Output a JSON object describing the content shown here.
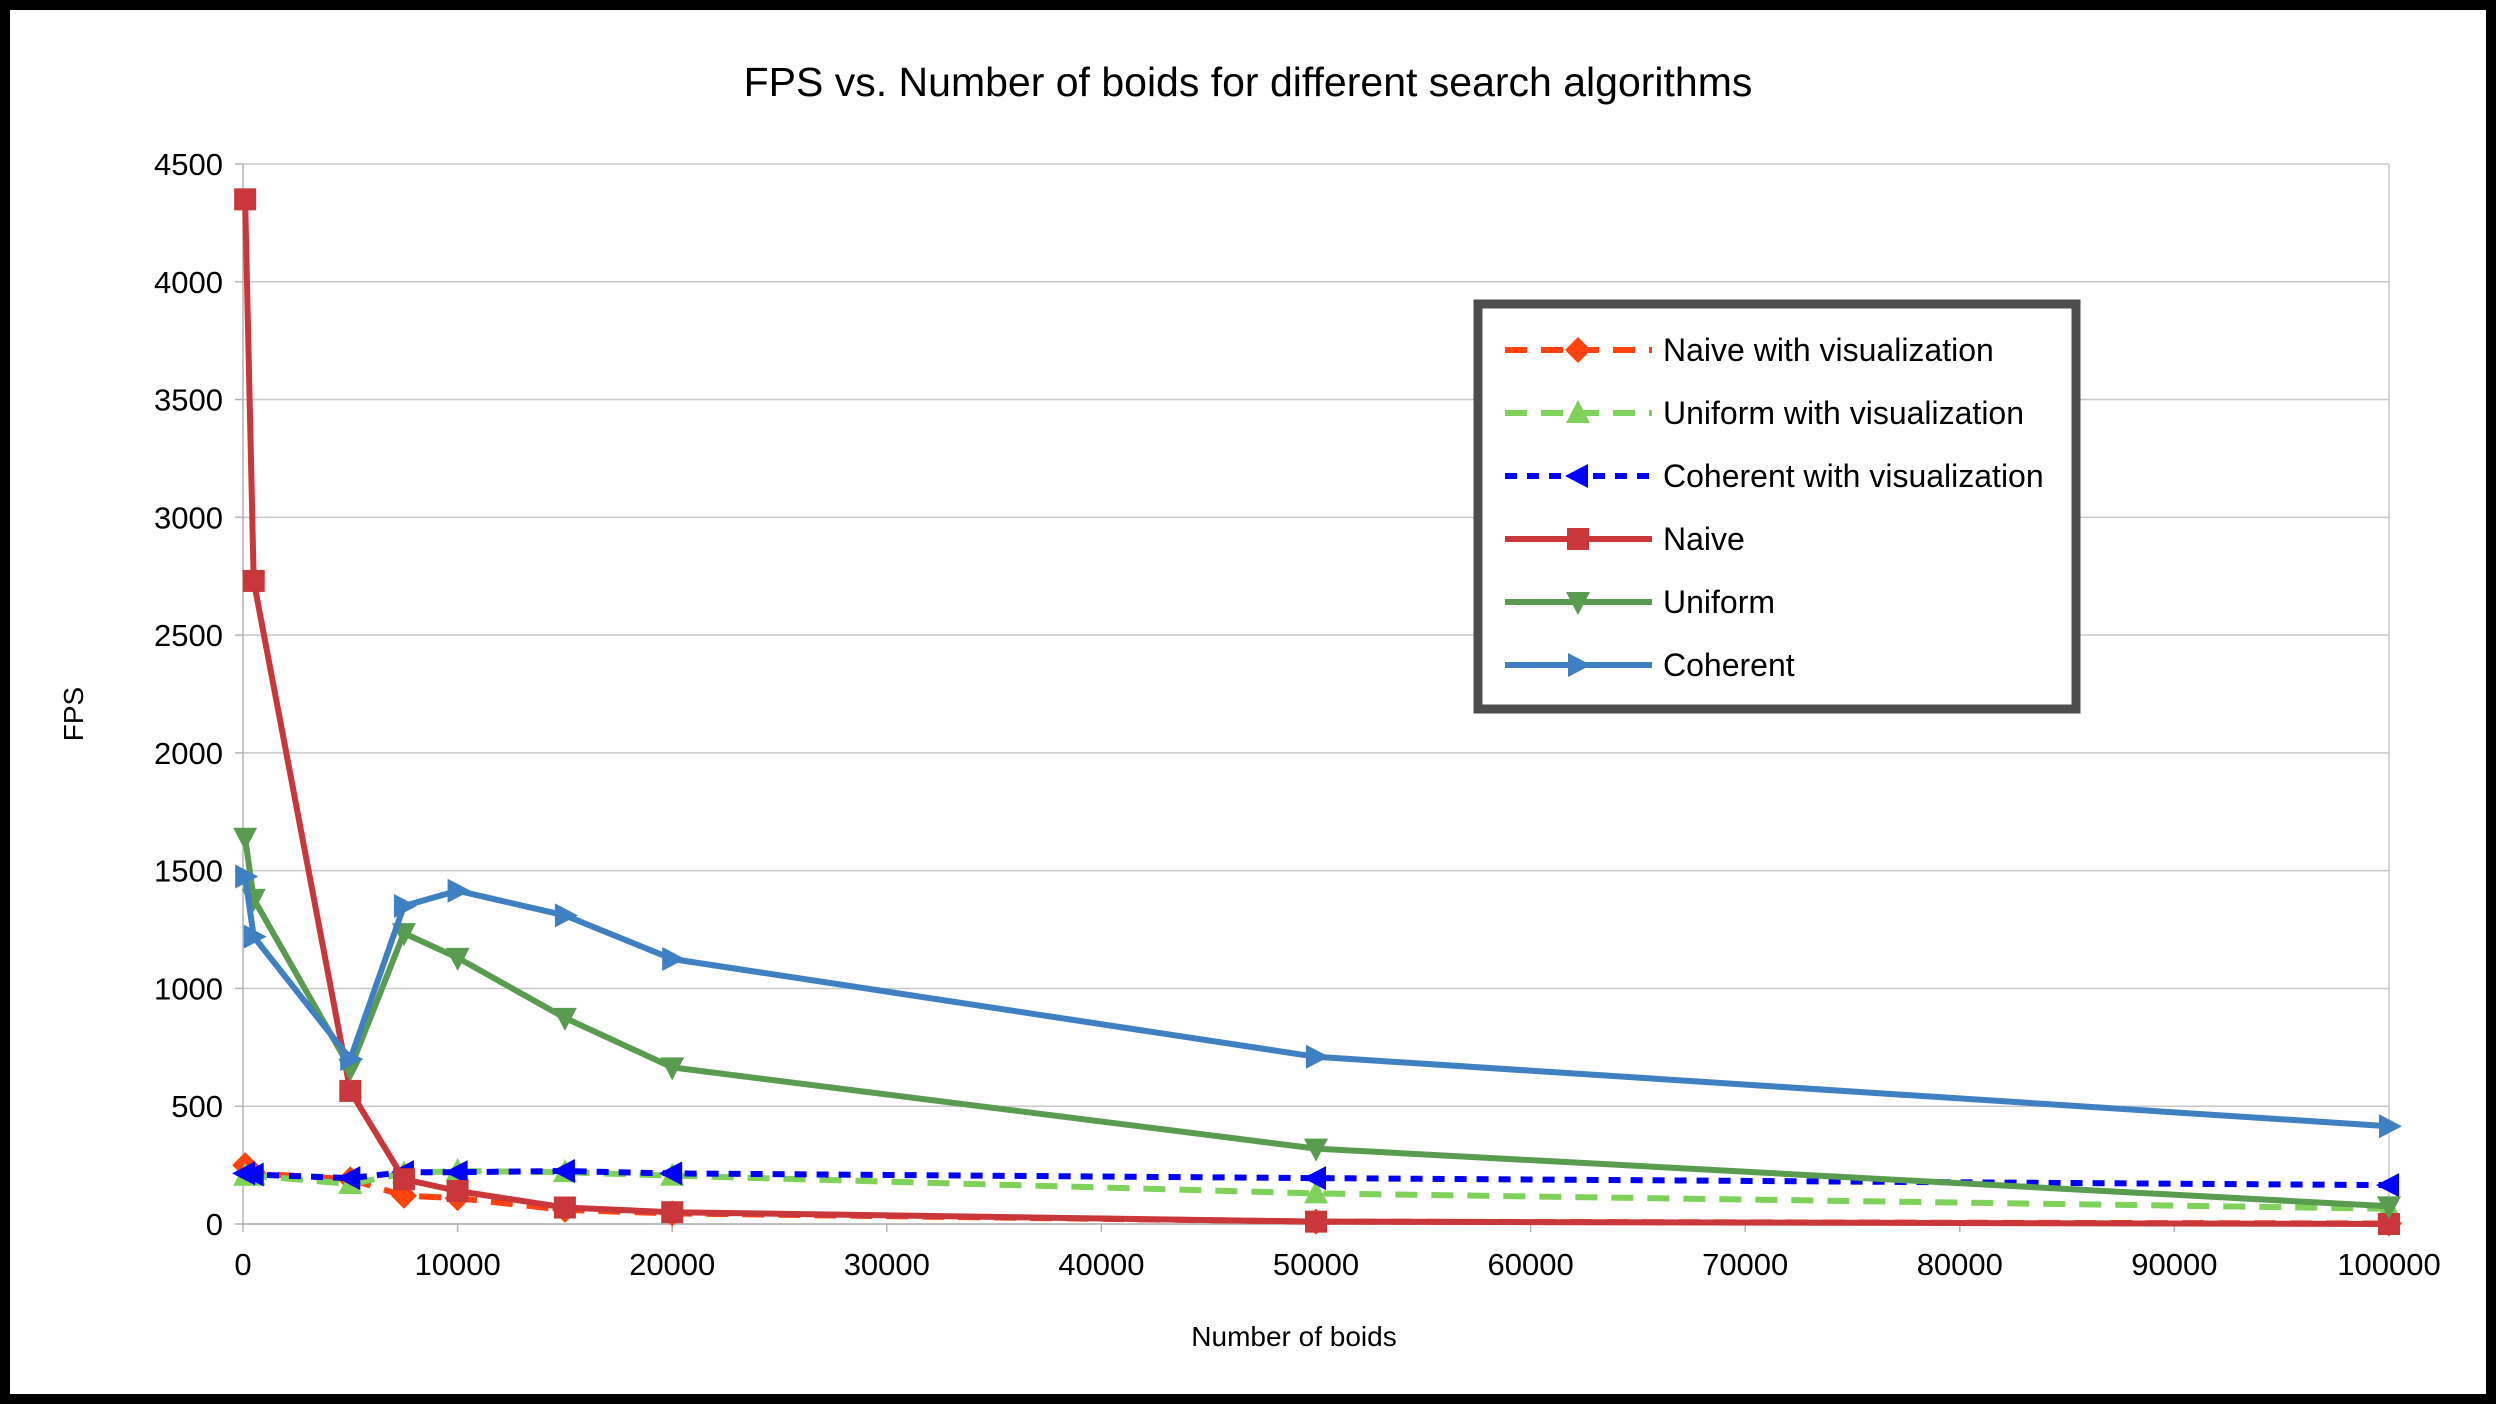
{
  "chart_data": {
    "type": "line",
    "title": "FPS vs. Number of boids for different search algorithms",
    "xlabel": "Number of boids",
    "ylabel": "FPS",
    "xlim": [
      0,
      100000
    ],
    "ylim": [
      0,
      4500
    ],
    "xticks": [
      "0",
      "10000",
      "20000",
      "30000",
      "40000",
      "50000",
      "60000",
      "70000",
      "80000",
      "90000",
      "100000"
    ],
    "yticks": [
      "0",
      "500",
      "1000",
      "1500",
      "2000",
      "2500",
      "3000",
      "3500",
      "4000",
      "4500"
    ],
    "grid": "horizontal",
    "legend_position": "top-right",
    "series": [
      {
        "name": "Naive with visualization",
        "color": "#ff420e",
        "dash": "dashed",
        "marker": "diamond",
        "x": [
          100,
          500,
          5000,
          7500,
          10000,
          15000,
          20000,
          50000,
          100000
        ],
        "y": [
          250,
          215,
          190,
          120,
          110,
          60,
          45,
          10,
          2
        ]
      },
      {
        "name": "Uniform with visualization",
        "color": "#7ed259",
        "dash": "dashed",
        "marker": "triangle-up",
        "x": [
          100,
          500,
          5000,
          7500,
          10000,
          15000,
          20000,
          50000,
          100000
        ],
        "y": [
          205,
          205,
          170,
          215,
          225,
          220,
          205,
          130,
          65
        ]
      },
      {
        "name": "Coherent with visualization",
        "color": "#0000ff",
        "dash": "dotted",
        "marker": "triangle-left",
        "x": [
          100,
          500,
          5000,
          7500,
          10000,
          15000,
          20000,
          50000,
          100000
        ],
        "y": [
          215,
          210,
          195,
          220,
          220,
          225,
          215,
          195,
          165
        ]
      },
      {
        "name": "Naive",
        "color": "#c9373a",
        "dash": "solid",
        "marker": "square",
        "x": [
          100,
          500,
          5000,
          7500,
          10000,
          15000,
          20000,
          50000,
          100000
        ],
        "y": [
          4350,
          2730,
          565,
          190,
          140,
          70,
          50,
          10,
          0
        ]
      },
      {
        "name": "Uniform",
        "color": "#599c4f",
        "dash": "solid",
        "marker": "triangle-down",
        "x": [
          100,
          500,
          5000,
          7500,
          10000,
          15000,
          20000,
          50000,
          100000
        ],
        "y": [
          1640,
          1380,
          660,
          1235,
          1130,
          875,
          665,
          320,
          75
        ]
      },
      {
        "name": "Coherent",
        "color": "#3f80c2",
        "dash": "solid",
        "marker": "triangle-right",
        "x": [
          100,
          500,
          5000,
          7500,
          10000,
          15000,
          20000,
          50000,
          100000
        ],
        "y": [
          1475,
          1220,
          700,
          1350,
          1415,
          1310,
          1125,
          710,
          415
        ]
      }
    ]
  }
}
